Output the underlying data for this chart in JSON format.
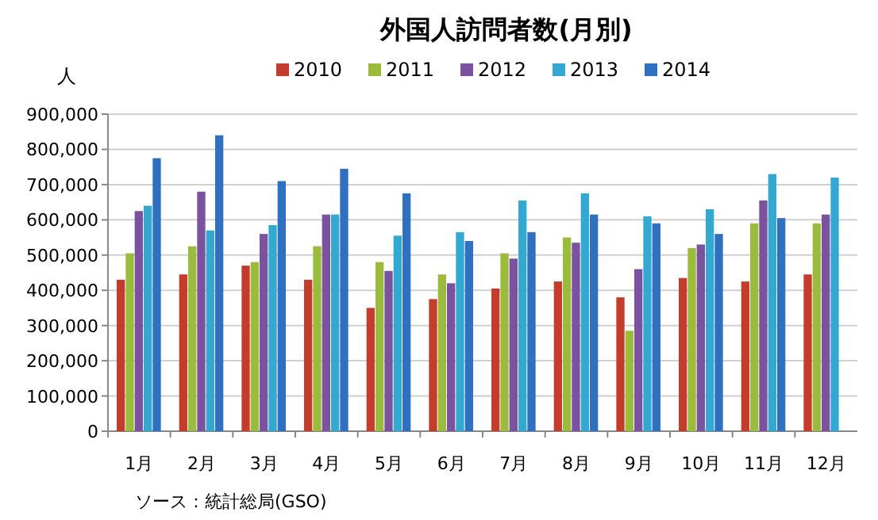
{
  "chart_data": {
    "type": "bar",
    "title": "外国人訪問者数(月別)",
    "ylabel": "人",
    "categories": [
      "1月",
      "2月",
      "3月",
      "4月",
      "5月",
      "6月",
      "7月",
      "8月",
      "9月",
      "10月",
      "11月",
      "12月"
    ],
    "series": [
      {
        "name": "2010",
        "color": "#c43c2c",
        "values": [
          430000,
          445000,
          470000,
          430000,
          350000,
          375000,
          405000,
          425000,
          380000,
          435000,
          425000,
          445000
        ]
      },
      {
        "name": "2011",
        "color": "#9bbb3c",
        "values": [
          505000,
          525000,
          480000,
          525000,
          480000,
          445000,
          505000,
          550000,
          285000,
          520000,
          590000,
          590000
        ]
      },
      {
        "name": "2012",
        "color": "#7a52a0",
        "values": [
          625000,
          680000,
          560000,
          615000,
          455000,
          420000,
          490000,
          535000,
          460000,
          530000,
          655000,
          615000
        ]
      },
      {
        "name": "2013",
        "color": "#33a9d2",
        "values": [
          640000,
          570000,
          585000,
          615000,
          555000,
          565000,
          655000,
          675000,
          610000,
          630000,
          730000,
          720000
        ]
      },
      {
        "name": "2014",
        "color": "#3070c0",
        "values": [
          775000,
          840000,
          710000,
          745000,
          675000,
          540000,
          565000,
          615000,
          590000,
          560000,
          605000,
          null
        ]
      }
    ],
    "ylim": [
      0,
      900000
    ],
    "yticks": [
      {
        "value": 0,
        "label": "0"
      },
      {
        "value": 100000,
        "label": "100,000"
      },
      {
        "value": 200000,
        "label": "200,000"
      },
      {
        "value": 300000,
        "label": "300,000"
      },
      {
        "value": 400000,
        "label": "400,000"
      },
      {
        "value": 500000,
        "label": "500,000"
      },
      {
        "value": 600000,
        "label": "600,000"
      },
      {
        "value": 700000,
        "label": "700,000"
      },
      {
        "value": 800000,
        "label": "800,000"
      },
      {
        "value": 900000,
        "label": "900,000"
      }
    ],
    "grid": "y",
    "legend": "top",
    "annotations": [
      "ソース：統計総局(GSO)"
    ]
  }
}
